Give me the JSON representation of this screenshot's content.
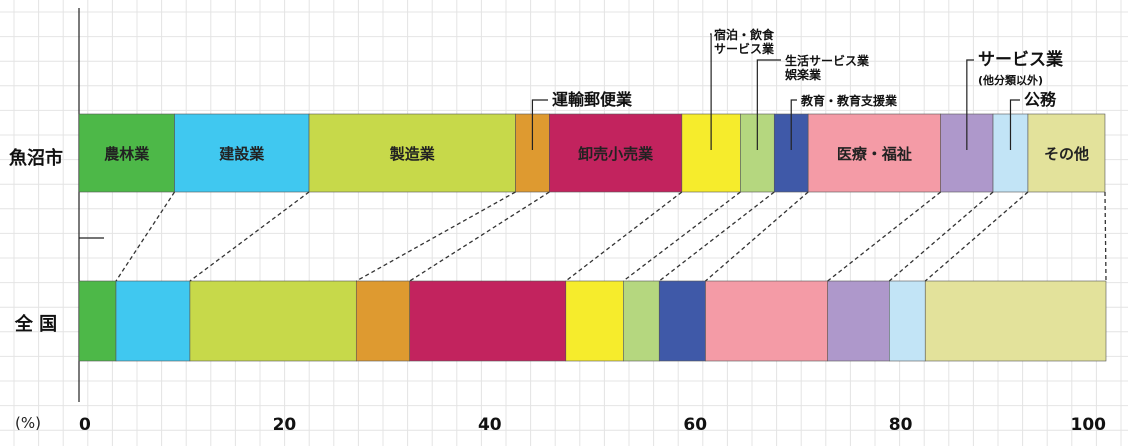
{
  "chart_data": {
    "type": "bar",
    "orientation": "horizontal-stacked-100",
    "unit_label": "(%)",
    "xlim": [
      0,
      100
    ],
    "x_ticks": [
      "0",
      "20",
      "40",
      "60",
      "80",
      "100"
    ],
    "grid": true,
    "categories": [
      "農林業",
      "建設業",
      "製造業",
      "運輸郵便業",
      "卸売小売業",
      "宿泊・飲食サービス業",
      "生活サービス業娯楽業",
      "教育・教育支援業",
      "医療・福祉",
      "サービス業(他分類以外)",
      "公務",
      "その他"
    ],
    "colors": [
      "#4db848",
      "#40c8f0",
      "#c7d94a",
      "#de9a30",
      "#c2235e",
      "#f6ec2c",
      "#b5d77f",
      "#3f59a8",
      "#f49ba6",
      "#ae98cb",
      "#c2e4f6",
      "#e3e29b"
    ],
    "segment_text": [
      "農林業",
      "建設業",
      "製造業",
      "",
      "卸売小売業",
      "",
      "",
      "",
      "医療・福祉",
      "",
      "",
      "その他"
    ],
    "callouts": [
      {
        "category_index": 3,
        "lines": [
          "運輸郵便業"
        ]
      },
      {
        "category_index": 5,
        "lines": [
          "宿泊・飲食",
          "サービス業"
        ]
      },
      {
        "category_index": 6,
        "lines": [
          "生活サービス業",
          "娯楽業"
        ]
      },
      {
        "category_index": 7,
        "lines": [
          "教育・教育支援業"
        ]
      },
      {
        "category_index": 9,
        "lines": [
          "サービス業",
          "(他分類以外)"
        ]
      },
      {
        "category_index": 10,
        "lines": [
          "公務"
        ]
      }
    ],
    "series": [
      {
        "name": "魚沼市",
        "values": [
          9.3,
          13.1,
          20.1,
          3.3,
          12.9,
          5.7,
          3.3,
          3.3,
          12.9,
          5.1,
          3.4,
          7.5
        ]
      },
      {
        "name": "全 国",
        "values": [
          3.6,
          7.2,
          16.2,
          5.2,
          15.2,
          5.6,
          3.5,
          4.5,
          11.9,
          6.0,
          3.5,
          17.6
        ]
      }
    ]
  }
}
